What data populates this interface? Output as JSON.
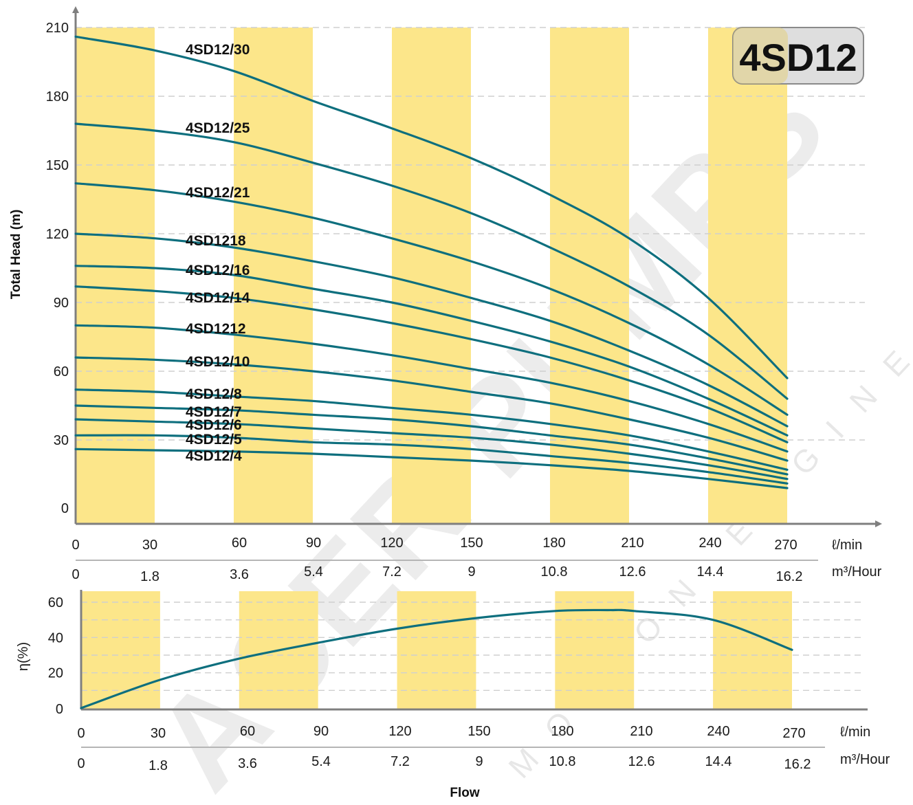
{
  "chart_data": [
    {
      "type": "line",
      "title": "4SD12",
      "ylabel": "Total Head (m)",
      "ylim": [
        0,
        210
      ],
      "yticks": [
        0,
        30,
        60,
        90,
        120,
        150,
        180,
        210
      ],
      "x_unit_1": "ℓ/min",
      "x_ticks_1": [
        "0",
        "30",
        "60",
        "90",
        "120",
        "150",
        "180",
        "210",
        "240",
        "270"
      ],
      "x_unit_2": "m³/Hour",
      "x_ticks_2": [
        "0",
        "1.8",
        "3.6",
        "5.4",
        "7.2",
        "9",
        "10.8",
        "12.6",
        "14.4",
        "16.2"
      ],
      "xlim": [
        0,
        270
      ],
      "grid": true,
      "series": [
        {
          "name": "4SD12/30",
          "x": [
            0,
            30,
            60,
            90,
            120,
            150,
            180,
            210,
            240,
            270
          ],
          "y": [
            206,
            200,
            191,
            178,
            166,
            153,
            137,
            118,
            92,
            57
          ]
        },
        {
          "name": "4SD12/25",
          "x": [
            0,
            30,
            60,
            90,
            120,
            150,
            180,
            210,
            240,
            270
          ],
          "y": [
            168,
            165,
            160,
            151,
            141,
            129,
            114,
            97,
            76,
            48
          ]
        },
        {
          "name": "4SD12/21",
          "x": [
            0,
            30,
            60,
            90,
            120,
            150,
            180,
            210,
            240,
            270
          ],
          "y": [
            142,
            139,
            134,
            127,
            118,
            108,
            96,
            81,
            63,
            41
          ]
        },
        {
          "name": "4SD1218",
          "x": [
            0,
            30,
            60,
            90,
            120,
            150,
            180,
            210,
            240,
            270
          ],
          "y": [
            120,
            118,
            114,
            108,
            101,
            92,
            82,
            69,
            54,
            36
          ]
        },
        {
          "name": "4SD12/16",
          "x": [
            0,
            30,
            60,
            90,
            120,
            150,
            180,
            210,
            240,
            270
          ],
          "y": [
            106,
            105,
            102,
            96,
            90,
            82,
            73,
            62,
            48,
            32
          ]
        },
        {
          "name": "4SD12/14",
          "x": [
            0,
            30,
            60,
            90,
            120,
            150,
            180,
            210,
            240,
            270
          ],
          "y": [
            97,
            95,
            92,
            87,
            81,
            74,
            66,
            56,
            44,
            29
          ]
        },
        {
          "name": "4SD1212",
          "x": [
            0,
            30,
            60,
            90,
            120,
            150,
            180,
            210,
            240,
            270
          ],
          "y": [
            80,
            79,
            76,
            72,
            67,
            61,
            55,
            47,
            37,
            25
          ]
        },
        {
          "name": "4SD12/10",
          "x": [
            0,
            30,
            60,
            90,
            120,
            150,
            180,
            210,
            240,
            270
          ],
          "y": [
            66,
            65,
            63,
            60,
            56,
            51,
            46,
            39,
            31,
            21
          ]
        },
        {
          "name": "4SD12/8",
          "x": [
            0,
            30,
            60,
            90,
            120,
            150,
            180,
            210,
            240,
            270
          ],
          "y": [
            52,
            51,
            49,
            47,
            44,
            41,
            37,
            32,
            25,
            17
          ]
        },
        {
          "name": "4SD12/7",
          "x": [
            0,
            30,
            60,
            90,
            120,
            150,
            180,
            210,
            240,
            270
          ],
          "y": [
            45,
            44,
            43,
            41,
            39,
            36,
            32,
            28,
            22,
            15
          ]
        },
        {
          "name": "4SD12/6",
          "x": [
            0,
            30,
            60,
            90,
            120,
            150,
            180,
            210,
            240,
            270
          ],
          "y": [
            39,
            38,
            37,
            35,
            33,
            31,
            28,
            24,
            19,
            13
          ]
        },
        {
          "name": "4SD12/5",
          "x": [
            0,
            30,
            60,
            90,
            120,
            150,
            180,
            210,
            240,
            270
          ],
          "y": [
            32,
            32,
            31,
            29,
            28,
            26,
            23,
            20,
            16,
            11
          ]
        },
        {
          "name": "4SD12/4",
          "x": [
            0,
            30,
            60,
            90,
            120,
            150,
            180,
            210,
            240,
            270
          ],
          "y": [
            26,
            25.5,
            25,
            24,
            22.5,
            21,
            19,
            16.5,
            13,
            9
          ]
        }
      ]
    },
    {
      "type": "line",
      "ylabel": "η(%)",
      "ylim": [
        0,
        60
      ],
      "yticks": [
        0,
        20,
        40,
        60
      ],
      "x_unit_1": "ℓ/min",
      "x_ticks_1": [
        "0",
        "30",
        "60",
        "90",
        "120",
        "150",
        "180",
        "210",
        "240",
        "270"
      ],
      "x_unit_2": "m³/Hour",
      "x_ticks_2": [
        "0",
        "1.8",
        "3.6",
        "5.4",
        "7.2",
        "9",
        "10.8",
        "12.6",
        "14.4",
        "16.2"
      ],
      "xlabel": "Flow",
      "xlim": [
        0,
        270
      ],
      "grid": true,
      "series": [
        {
          "x": [
            0,
            30,
            60,
            90,
            120,
            150,
            180,
            200,
            210,
            240,
            270
          ],
          "y": [
            0,
            16,
            28,
            37,
            45,
            51,
            55,
            55.5,
            55,
            50,
            33
          ]
        }
      ]
    }
  ],
  "badge": {
    "text": "4SD12"
  },
  "watermark": {
    "main": "ACER PUMPS",
    "sub": "MOTION ENGINEERING"
  },
  "colors": {
    "band": "#fce68a",
    "curve": "#0e6f7e",
    "axis": "#7f7f7f",
    "badge_fill": "#dedede",
    "badge_border": "#8a8a8a"
  }
}
